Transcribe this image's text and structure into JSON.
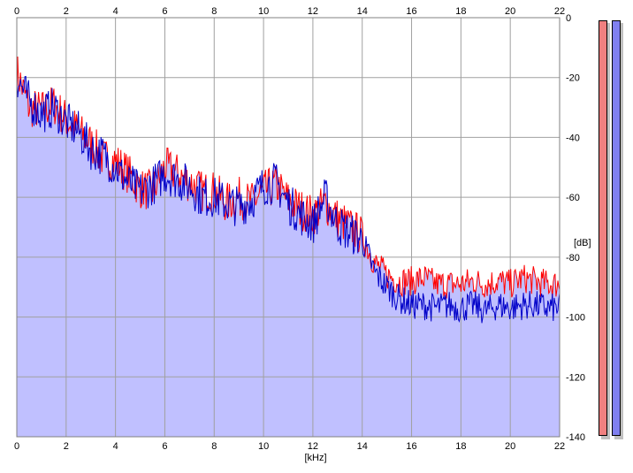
{
  "chart_data": {
    "type": "area",
    "xlabel": "[kHz]",
    "ylabel": "[dB]",
    "xlim": [
      0,
      22
    ],
    "ylim": [
      -140,
      0
    ],
    "x_ticks": [
      "0",
      "2",
      "4",
      "6",
      "8",
      "10",
      "12",
      "14",
      "16",
      "18",
      "20",
      "22"
    ],
    "y_ticks": [
      "0",
      "-20",
      "-40",
      "-60",
      "-80",
      "-100",
      "-120",
      "-140"
    ],
    "grid": true,
    "colors": {
      "left_channel": "#ff0000",
      "right_channel": "#0000c8",
      "fill": "#c0c0ff",
      "grid": "#a0a0a0",
      "meter_left": "#f08080",
      "meter_right": "#8080f0"
    },
    "series": [
      {
        "x": [
          0,
          0.5,
          1,
          1.5,
          2,
          2.5,
          3,
          3.5,
          4,
          4.5,
          5,
          5.5,
          6,
          6.5,
          7,
          7.5,
          8,
          8.5,
          9,
          9.5,
          10,
          10.5,
          11,
          11.5,
          12,
          12.5,
          13,
          13.5,
          14,
          14.5,
          15,
          15.5,
          16,
          16.5,
          17,
          17.5,
          18,
          18.5,
          19,
          19.5,
          20,
          20.5,
          21,
          21.5,
          22
        ],
        "values": [
          -18,
          -30,
          -31,
          -29,
          -34,
          -38,
          -42,
          -47,
          -48,
          -52,
          -57,
          -58,
          -50,
          -52,
          -55,
          -58,
          -58,
          -62,
          -60,
          -62,
          -58,
          -56,
          -61,
          -64,
          -66,
          -62,
          -67,
          -70,
          -73,
          -82,
          -86,
          -88,
          -88,
          -87,
          -89,
          -89,
          -89,
          -88,
          -89,
          -88,
          -89,
          -87,
          -88,
          -89,
          -89
        ]
      },
      {
        "x": [
          0,
          0.5,
          1,
          1.5,
          2,
          2.5,
          3,
          3.5,
          4,
          4.5,
          5,
          5.5,
          6,
          6.5,
          7,
          7.5,
          8,
          8.5,
          9,
          9.5,
          10,
          10.5,
          11,
          11.5,
          12,
          12.5,
          13,
          13.5,
          14,
          14.5,
          15,
          15.5,
          16,
          16.5,
          17,
          17.5,
          18,
          18.5,
          19,
          19.5,
          20,
          20.5,
          21,
          21.5,
          22
        ],
        "values": [
          -20,
          -28,
          -32,
          -30,
          -35,
          -38,
          -44,
          -46,
          -50,
          -55,
          -58,
          -56,
          -52,
          -54,
          -56,
          -60,
          -60,
          -62,
          -63,
          -61,
          -56,
          -55,
          -62,
          -66,
          -69,
          -60,
          -69,
          -72,
          -74,
          -85,
          -90,
          -94,
          -96,
          -96,
          -97,
          -96,
          -97,
          -96,
          -98,
          -96,
          -97,
          -96,
          -96,
          -97,
          -97
        ]
      }
    ]
  }
}
